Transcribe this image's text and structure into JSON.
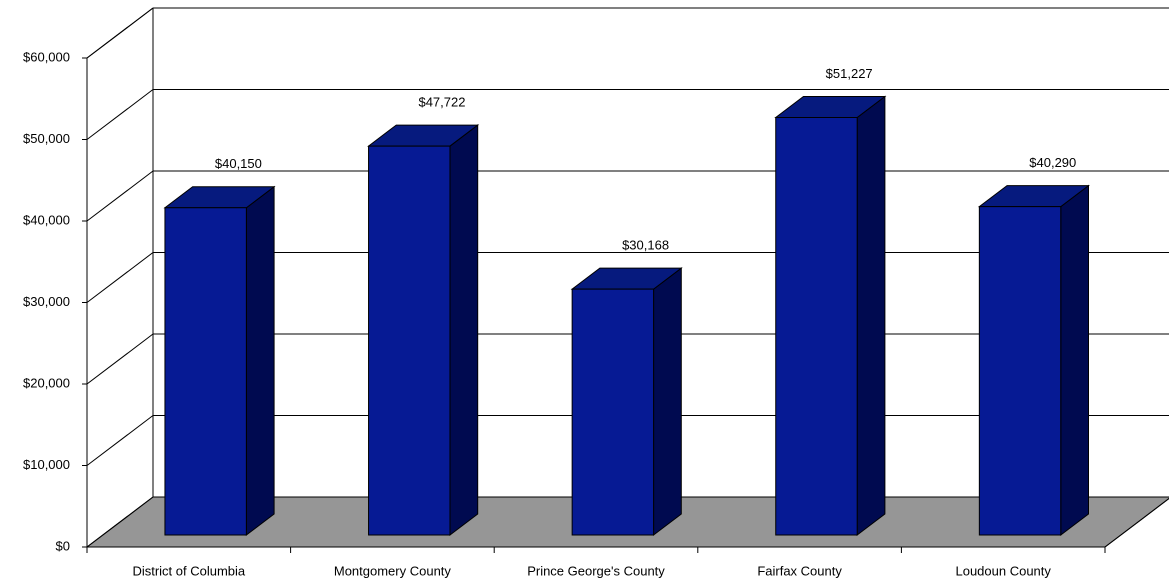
{
  "chart_data": {
    "type": "bar3d",
    "categories": [
      "District of Columbia",
      "Montgomery County",
      "Prince George's County",
      "Fairfax County",
      "Loudoun County"
    ],
    "values": [
      40150,
      47722,
      30168,
      51227,
      40290
    ],
    "value_labels": [
      "$40,150",
      "$47,722",
      "$30,168",
      "$51,227",
      "$40,290"
    ],
    "color": "#061a94",
    "ylim": [
      0,
      60000
    ],
    "yticks": [
      {
        "value": 0,
        "label": "$0"
      },
      {
        "value": 10000,
        "label": "$10,000"
      },
      {
        "value": 20000,
        "label": "$20,000"
      },
      {
        "value": 30000,
        "label": "$30,000"
      },
      {
        "value": 40000,
        "label": "$40,000"
      },
      {
        "value": 50000,
        "label": "$50,000"
      },
      {
        "value": 60000,
        "label": "$60,000"
      }
    ],
    "grid": true
  }
}
